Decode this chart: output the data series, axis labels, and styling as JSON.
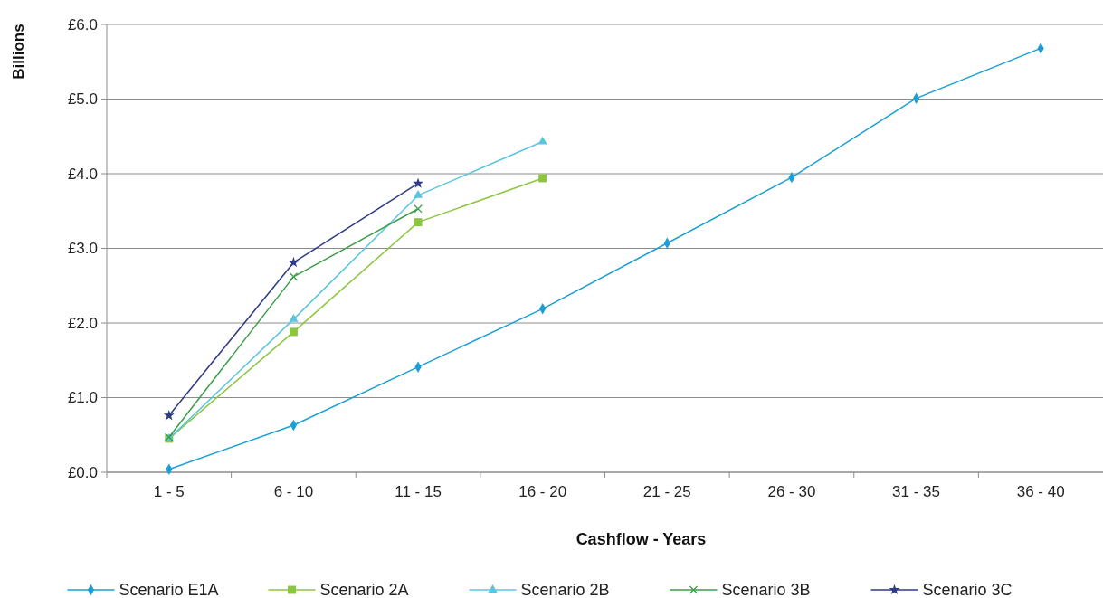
{
  "chart_data": {
    "type": "line",
    "xlabel": "Cashflow - Years",
    "ylabel": "Billions",
    "categories": [
      "1 - 5",
      "6 - 10",
      "11 - 15",
      "16 - 20",
      "21 - 25",
      "26 - 30",
      "31 - 35",
      "36 - 40"
    ],
    "ylim": [
      0,
      6
    ],
    "yticks": [
      {
        "value": 0,
        "label": "£0.0"
      },
      {
        "value": 1,
        "label": "£1.0"
      },
      {
        "value": 2,
        "label": "£2.0"
      },
      {
        "value": 3,
        "label": "£3.0"
      },
      {
        "value": 4,
        "label": "£4.0"
      },
      {
        "value": 5,
        "label": "£5.0"
      },
      {
        "value": 6,
        "label": "£6.0"
      }
    ],
    "grid": "y",
    "legend": "bottom",
    "line_style": "solid",
    "series": [
      {
        "name": "Scenario E1A",
        "color": "#1a9fd6",
        "marker": "diamond",
        "values": [
          0.04,
          0.63,
          1.41,
          2.19,
          3.07,
          3.95,
          5.01,
          5.68
        ]
      },
      {
        "name": "Scenario 2A",
        "color": "#8cc63f",
        "marker": "square",
        "values": [
          0.45,
          1.88,
          3.35,
          3.94,
          null,
          null,
          null,
          null
        ]
      },
      {
        "name": "Scenario 2B",
        "color": "#5bc4e0",
        "marker": "triangle",
        "values": [
          0.45,
          2.05,
          3.71,
          4.43,
          null,
          null,
          null,
          null
        ]
      },
      {
        "name": "Scenario 3B",
        "color": "#3a9e48",
        "marker": "cross",
        "values": [
          0.47,
          2.62,
          3.53,
          null,
          null,
          null,
          null,
          null
        ]
      },
      {
        "name": "Scenario 3C",
        "color": "#2d3a86",
        "marker": "star",
        "values": [
          0.76,
          2.81,
          3.87,
          null,
          null,
          null,
          null,
          null
        ]
      }
    ]
  }
}
